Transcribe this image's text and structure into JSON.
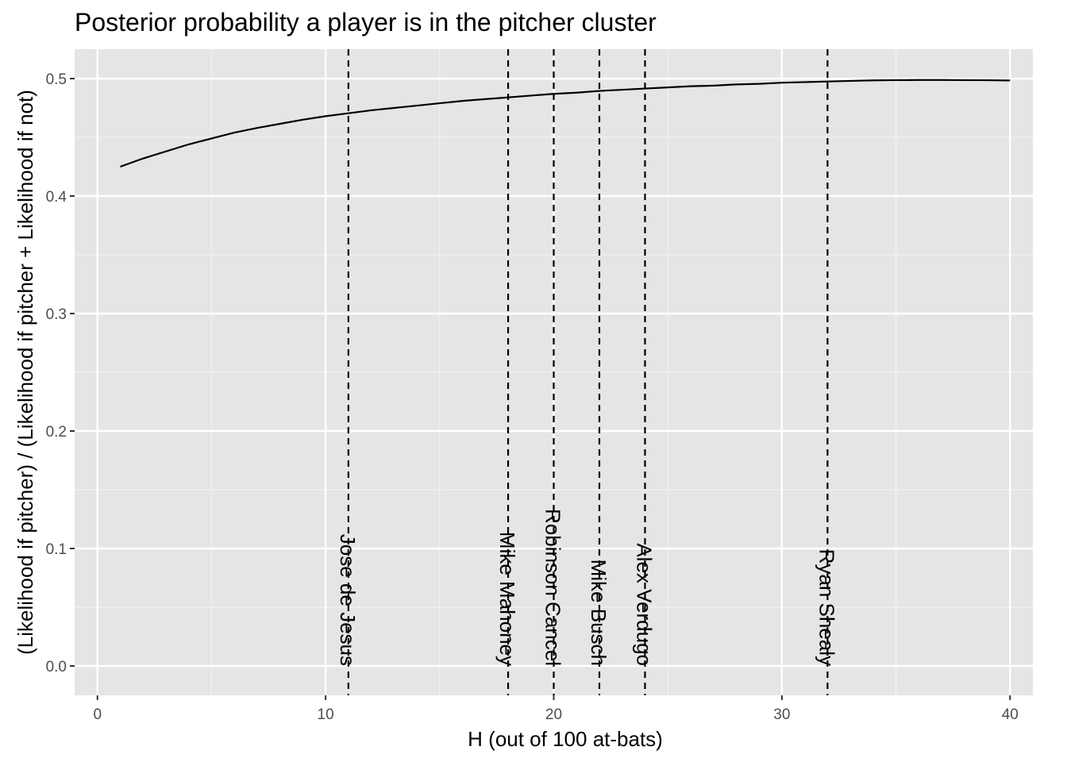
{
  "chart_data": {
    "type": "line",
    "title": "Posterior probability a player is in the pitcher cluster",
    "xlabel": "H (out of 100 at-bats)",
    "ylabel": "(Likelihood if pitcher) / (Likelihood if pitcher + Likelihood if not)",
    "xlim": [
      -1,
      41
    ],
    "ylim": [
      -0.025,
      0.525
    ],
    "x_ticks": [
      0,
      10,
      20,
      30,
      40
    ],
    "x_tick_labels": [
      "0",
      "10",
      "20",
      "30",
      "40"
    ],
    "y_ticks": [
      0.0,
      0.1,
      0.2,
      0.3,
      0.4,
      0.5
    ],
    "y_tick_labels": [
      "0.0",
      "0.1",
      "0.2",
      "0.3",
      "0.4",
      "0.5"
    ],
    "grid": true,
    "background": "#e5e5e5",
    "line_color": "#000000",
    "series": [
      {
        "x": [
          1,
          2,
          3,
          4,
          5,
          6,
          7,
          8,
          9,
          10,
          11,
          12,
          13,
          14,
          15,
          16,
          17,
          18,
          19,
          20,
          21,
          22,
          23,
          24,
          25,
          26,
          27,
          28,
          29,
          30,
          31,
          32,
          33,
          34,
          35,
          36,
          37,
          38,
          39,
          40
        ],
        "values": [
          0.425,
          0.432,
          0.438,
          0.444,
          0.449,
          0.454,
          0.458,
          0.4615,
          0.465,
          0.468,
          0.4705,
          0.473,
          0.475,
          0.477,
          0.479,
          0.481,
          0.4825,
          0.484,
          0.4855,
          0.487,
          0.488,
          0.4895,
          0.4905,
          0.4915,
          0.4925,
          0.4935,
          0.494,
          0.495,
          0.4955,
          0.4965,
          0.497,
          0.4975,
          0.498,
          0.4985,
          0.4987,
          0.4988,
          0.4988,
          0.4987,
          0.4986,
          0.4984
        ]
      }
    ],
    "players": [
      {
        "name": "Jose de Jesus",
        "x": 11
      },
      {
        "name": "Mike Mahoney",
        "x": 18
      },
      {
        "name": "Robinson Cancel",
        "x": 20
      },
      {
        "name": "Mike Busch",
        "x": 22
      },
      {
        "name": "Alex Verdugo",
        "x": 24
      },
      {
        "name": "Ryan Shealy",
        "x": 32
      }
    ]
  }
}
